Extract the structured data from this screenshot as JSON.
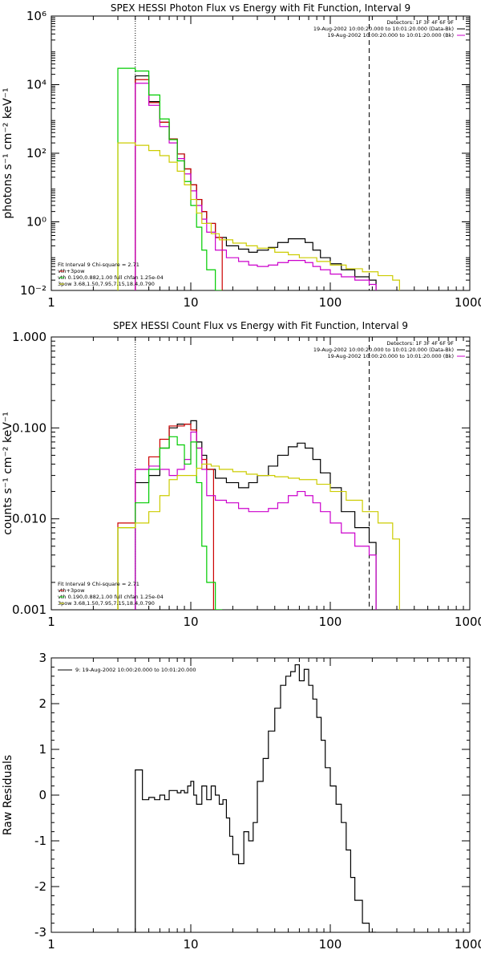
{
  "chart_data": [
    {
      "type": "line",
      "title": "SPEX HESSI Photon Flux vs Energy with Fit Function, Interval 9",
      "xlabel": "",
      "ylabel": "photons s⁻¹ cm⁻² keV⁻¹",
      "xscale": "log",
      "yscale": "log",
      "xlim": [
        1,
        1000
      ],
      "ylim": [
        0.01,
        1000000
      ],
      "x_ticks": [
        1,
        10,
        100,
        1000
      ],
      "x_tick_labels": [
        "1",
        "10",
        "100",
        "1000"
      ],
      "y_ticks": [
        0.01,
        1,
        100,
        10000,
        1000000
      ],
      "y_tick_labels": [
        "10⁻²",
        "10⁰",
        "10²",
        "10⁴",
        "10⁶"
      ],
      "vlines": [
        {
          "x": 4,
          "style": "dotted"
        },
        {
          "x": 190,
          "style": "dashed"
        }
      ],
      "header_lines": [
        "Detectors: 1F 3F 4F 6F 9F",
        "19-Aug-2002 10:00:20.000 to 10:01:20.000 (Data-Bk)",
        "19-Aug-2002 10:00:20.000 to 10:01:20.000 (Bk)"
      ],
      "header_colors": [
        "#000000",
        "#000000",
        "#cc00cc"
      ],
      "legend_lines": [
        "Fit Interval 9   Chi-square = 2.71",
        "vth+3pow",
        "vth 0.190,0.882,1.00  full chfan 1.25e-04",
        "3pow 3.68,1.50,7.95,7.15,18.4,0.790"
      ],
      "legend_colors": [
        "#000000",
        "#cc0000",
        "#00cc00",
        "#cccc00"
      ],
      "legend_position": "bottom-left",
      "series": [
        {
          "name": "Data-Bk",
          "color": "#000000",
          "step": true,
          "x": [
            4,
            5,
            6,
            7,
            8,
            9,
            10,
            11,
            12,
            13,
            15,
            18,
            22,
            26,
            30,
            36,
            42,
            50,
            58,
            66,
            75,
            85,
            100,
            120,
            150,
            190
          ],
          "y": [
            18000,
            3200,
            800,
            260,
            95,
            35,
            12,
            4.5,
            2,
            0.9,
            0.35,
            0.2,
            0.16,
            0.13,
            0.15,
            0.18,
            0.25,
            0.32,
            0.32,
            0.25,
            0.15,
            0.09,
            0.06,
            0.04,
            0.025,
            0.02
          ]
        },
        {
          "name": "vth+3pow",
          "color": "#cc0000",
          "step": true,
          "x": [
            4,
            5,
            6,
            7,
            8,
            9,
            10,
            11,
            12,
            13,
            15
          ],
          "y": [
            14000,
            3000,
            800,
            260,
            95,
            35,
            12,
            4.5,
            2,
            0.9,
            0.35
          ]
        },
        {
          "name": "Bk",
          "color": "#cc00cc",
          "step": true,
          "x": [
            4,
            5,
            6,
            7,
            8,
            9,
            10,
            11,
            12,
            13,
            15,
            18,
            22,
            26,
            30,
            36,
            42,
            50,
            58,
            66,
            75,
            85,
            100,
            120,
            150,
            190
          ],
          "y": [
            11000,
            2500,
            600,
            200,
            70,
            25,
            8,
            3,
            1.2,
            0.5,
            0.15,
            0.09,
            0.07,
            0.055,
            0.05,
            0.055,
            0.065,
            0.075,
            0.075,
            0.065,
            0.05,
            0.04,
            0.03,
            0.025,
            0.02,
            0.015
          ]
        },
        {
          "name": "vth",
          "color": "#00cc00",
          "step": true,
          "x": [
            3,
            4,
            5,
            6,
            7,
            8,
            9,
            10,
            11,
            12,
            13,
            15
          ],
          "y": [
            30000,
            25000,
            5000,
            1000,
            250,
            60,
            15,
            3,
            0.7,
            0.15,
            0.04,
            0.01
          ]
        },
        {
          "name": "3pow",
          "color": "#cccc00",
          "step": true,
          "x": [
            3,
            4,
            5,
            6,
            7,
            8,
            9,
            10,
            11,
            12,
            14,
            16,
            20,
            25,
            30,
            40,
            50,
            60,
            80,
            100,
            130,
            170,
            220,
            280
          ],
          "y": [
            200,
            170,
            120,
            85,
            55,
            30,
            12,
            4.5,
            1.8,
            0.9,
            0.45,
            0.3,
            0.24,
            0.2,
            0.17,
            0.13,
            0.11,
            0.09,
            0.07,
            0.055,
            0.043,
            0.035,
            0.027,
            0.02
          ]
        }
      ]
    },
    {
      "type": "line",
      "title": "SPEX HESSI Count Flux vs Energy with Fit Function, Interval 9",
      "xlabel": "",
      "ylabel": "counts s⁻¹ cm⁻² keV⁻¹",
      "xscale": "log",
      "yscale": "log",
      "xlim": [
        1,
        1000
      ],
      "ylim": [
        0.001,
        1
      ],
      "x_ticks": [
        1,
        10,
        100,
        1000
      ],
      "x_tick_labels": [
        "1",
        "10",
        "100",
        "1000"
      ],
      "y_ticks": [
        0.001,
        0.01,
        0.1,
        1
      ],
      "y_tick_labels": [
        "0.001",
        "0.010",
        "0.100",
        "1.000"
      ],
      "vlines": [
        {
          "x": 4,
          "style": "dotted"
        },
        {
          "x": 190,
          "style": "dashed"
        }
      ],
      "header_lines": [
        "Detectors: 1F 3F 4F 6F 9F",
        "19-Aug-2002 10:00:20.000 to 10:01:20.000 (Data-Bk)",
        "19-Aug-2002 10:00:20.000 to 10:01:20.000 (Bk)"
      ],
      "header_colors": [
        "#000000",
        "#000000",
        "#cc00cc"
      ],
      "legend_lines": [
        "Fit Interval 9   Chi-square = 2.71",
        "vth+3pow",
        "vth 0.190,0.882,1.00  full chfan 1.25e-04",
        "3pow 3.68,1.50,7.95,7.15,18.4,0.790"
      ],
      "legend_colors": [
        "#000000",
        "#cc0000",
        "#00cc00",
        "#cccc00"
      ],
      "legend_position": "bottom-left",
      "series": [
        {
          "name": "Data-Bk",
          "color": "#000000",
          "step": true,
          "x": [
            4,
            5,
            6,
            7,
            8,
            9,
            10,
            11,
            12,
            13,
            15,
            18,
            22,
            26,
            30,
            36,
            42,
            50,
            58,
            66,
            75,
            85,
            100,
            120,
            150,
            190
          ],
          "y": [
            0.025,
            0.03,
            0.06,
            0.1,
            0.11,
            0.11,
            0.12,
            0.07,
            0.05,
            0.035,
            0.028,
            0.025,
            0.022,
            0.025,
            0.03,
            0.038,
            0.05,
            0.062,
            0.068,
            0.06,
            0.045,
            0.032,
            0.022,
            0.012,
            0.008,
            0.0055
          ]
        },
        {
          "name": "vth+3pow",
          "color": "#cc0000",
          "step": true,
          "x": [
            3,
            4,
            5,
            6,
            7,
            8,
            9,
            10,
            11,
            12,
            13
          ],
          "y": [
            0.009,
            0.035,
            0.048,
            0.075,
            0.105,
            0.105,
            0.11,
            0.095,
            0.06,
            0.045,
            0.035
          ]
        },
        {
          "name": "Bk",
          "color": "#cc00cc",
          "step": true,
          "x": [
            4,
            5,
            6,
            7,
            8,
            9,
            10,
            11,
            12,
            13,
            15,
            18,
            22,
            26,
            30,
            36,
            42,
            50,
            58,
            66,
            75,
            85,
            100,
            120,
            150,
            190
          ],
          "y": [
            0.035,
            0.038,
            0.035,
            0.03,
            0.035,
            0.045,
            0.09,
            0.06,
            0.035,
            0.018,
            0.016,
            0.015,
            0.013,
            0.012,
            0.012,
            0.013,
            0.015,
            0.018,
            0.02,
            0.018,
            0.015,
            0.012,
            0.009,
            0.007,
            0.005,
            0.004
          ]
        },
        {
          "name": "vth",
          "color": "#00cc00",
          "step": true,
          "x": [
            3,
            4,
            5,
            6,
            7,
            8,
            9,
            10,
            11,
            12,
            13,
            15
          ],
          "y": [
            0.008,
            0.015,
            0.035,
            0.06,
            0.08,
            0.065,
            0.04,
            0.07,
            0.025,
            0.005,
            0.002,
            0.001
          ]
        },
        {
          "name": "3pow",
          "color": "#cccc00",
          "step": true,
          "x": [
            3,
            4,
            5,
            6,
            7,
            8,
            9,
            10,
            11,
            12,
            14,
            16,
            20,
            25,
            30,
            40,
            50,
            60,
            80,
            100,
            130,
            170,
            220,
            280
          ],
          "y": [
            0.008,
            0.009,
            0.012,
            0.018,
            0.027,
            0.03,
            0.03,
            0.03,
            0.036,
            0.04,
            0.038,
            0.035,
            0.033,
            0.031,
            0.03,
            0.029,
            0.028,
            0.027,
            0.024,
            0.02,
            0.016,
            0.012,
            0.009,
            0.006
          ]
        }
      ]
    },
    {
      "type": "line",
      "title": "",
      "xlabel": "",
      "ylabel": "Raw Residuals",
      "xscale": "log",
      "yscale": "linear",
      "xlim": [
        1,
        1000
      ],
      "ylim": [
        -3,
        3
      ],
      "x_ticks": [
        1,
        10,
        100,
        1000
      ],
      "x_tick_labels": [
        "1",
        "10",
        "100",
        "1000"
      ],
      "y_ticks": [
        -3,
        -2,
        -1,
        0,
        1,
        2,
        3
      ],
      "y_tick_labels": [
        "-3",
        "-2",
        "-1",
        "0",
        "1",
        "2",
        "3"
      ],
      "legend_lines": [
        "9: 19-Aug-2002 10:00:20.000 to 10:01:20.000"
      ],
      "legend_position": "top-left",
      "series": [
        {
          "name": "9: 19-Aug-2002 10:00:20.000 to 10:01:20.000",
          "color": "#000000",
          "step": true,
          "x": [
            4,
            4.5,
            5,
            5.5,
            6,
            6.5,
            7,
            7.5,
            8,
            8.5,
            9,
            9.5,
            10,
            10.5,
            11,
            12,
            13,
            14,
            15,
            16,
            17,
            18,
            19,
            20,
            22,
            24,
            26,
            28,
            30,
            33,
            36,
            40,
            44,
            48,
            52,
            56,
            60,
            65,
            70,
            75,
            80,
            86,
            92,
            100,
            110,
            120,
            130,
            140,
            150,
            170,
            190
          ],
          "y": [
            0.55,
            -0.1,
            -0.05,
            -0.1,
            0.0,
            -0.1,
            0.1,
            0.1,
            0.05,
            0.1,
            0.05,
            0.2,
            0.3,
            0.0,
            -0.2,
            0.2,
            -0.1,
            0.2,
            0.0,
            -0.2,
            -0.1,
            -0.5,
            -0.9,
            -1.3,
            -1.5,
            -0.8,
            -1.0,
            -0.6,
            0.3,
            0.8,
            1.4,
            1.9,
            2.4,
            2.6,
            2.7,
            2.85,
            2.5,
            2.75,
            2.4,
            2.1,
            1.7,
            1.2,
            0.6,
            0.2,
            -0.2,
            -0.6,
            -1.2,
            -1.8,
            -2.3,
            -2.8,
            -3.0
          ]
        }
      ]
    }
  ]
}
